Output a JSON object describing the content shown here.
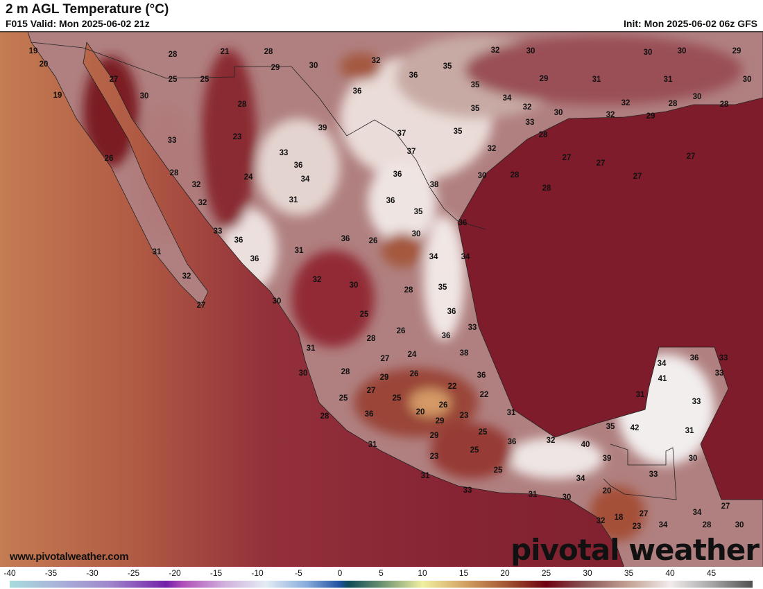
{
  "header": {
    "title": "2 m AGL Temperature (°C)",
    "valid": "F015 Valid: Mon 2025-06-02 21z",
    "init": "Init: Mon 2025-06-02 06z GFS"
  },
  "footer": {
    "url": "www.pivotalweather.com",
    "logo": "pivotal weather"
  },
  "colorbar": {
    "unit": "°C",
    "ticks": [
      "-40",
      "-35",
      "-30",
      "-25",
      "-20",
      "-15",
      "-10",
      "-5",
      "0",
      "5",
      "10",
      "15",
      "20",
      "25",
      "30",
      "35",
      "40",
      "45"
    ],
    "range": [
      -40,
      50
    ],
    "stops": [
      {
        "v": -40,
        "c": "#a8dcdc"
      },
      {
        "v": -35,
        "c": "#aab8da"
      },
      {
        "v": -28,
        "c": "#a088cc"
      },
      {
        "v": -21,
        "c": "#7420a8"
      },
      {
        "v": -19,
        "c": "#b050b8"
      },
      {
        "v": -14,
        "c": "#d0b0dc"
      },
      {
        "v": -9,
        "c": "#e4ecf4"
      },
      {
        "v": -4,
        "c": "#88acdc"
      },
      {
        "v": 0,
        "c": "#2050a0"
      },
      {
        "v": 1,
        "c": "#0e4a58"
      },
      {
        "v": 5,
        "c": "#6a9070"
      },
      {
        "v": 10,
        "c": "#f0f0a0"
      },
      {
        "v": 15,
        "c": "#d4a464"
      },
      {
        "v": 20,
        "c": "#a45834"
      },
      {
        "v": 25,
        "c": "#6e0010"
      },
      {
        "v": 30,
        "c": "#8c5a5a"
      },
      {
        "v": 35,
        "c": "#c4a294"
      },
      {
        "v": 40,
        "c": "#f2ecec"
      },
      {
        "v": 45,
        "c": "#a8a8a8"
      },
      {
        "v": 50,
        "c": "#505050"
      }
    ]
  },
  "map": {
    "colors": {
      "pacific_far": "#c27a50",
      "pacific_near": "#8c2838",
      "gulf": "#7c1c2a",
      "land_base": "#b88a8a",
      "hot": "#f4eeee",
      "cool": "#8a1a22"
    },
    "temperature_labels": [
      19,
      20,
      19,
      27,
      30,
      28,
      21,
      28,
      25,
      25,
      29,
      30,
      32,
      36,
      35,
      32,
      30,
      30,
      30,
      29,
      30,
      31,
      31,
      29,
      35,
      34,
      35,
      32,
      30,
      32,
      32,
      29,
      28,
      30,
      28,
      36,
      28,
      33,
      23,
      39,
      37,
      37,
      35,
      33,
      28,
      32,
      27,
      27,
      27,
      27,
      28,
      28,
      30,
      26,
      28,
      32,
      33,
      36,
      34,
      24,
      32,
      31,
      36,
      38,
      36,
      35,
      36,
      33,
      36,
      31,
      36,
      31,
      36,
      26,
      30,
      34,
      34,
      32,
      32,
      30,
      28,
      35,
      27,
      30,
      36,
      33,
      25,
      28,
      26,
      36,
      31,
      27,
      24,
      38,
      30,
      28,
      29,
      26,
      36,
      22,
      27,
      25,
      25,
      22,
      26,
      20,
      23,
      29,
      36,
      28,
      31,
      25,
      29,
      36,
      32,
      40,
      35,
      42,
      31,
      34,
      36,
      33,
      41,
      33,
      33,
      31,
      39,
      30,
      31,
      23,
      25,
      25,
      31,
      33,
      31,
      33,
      34,
      20,
      30,
      18,
      27,
      27,
      34,
      32,
      23,
      34,
      28,
      30
    ]
  }
}
